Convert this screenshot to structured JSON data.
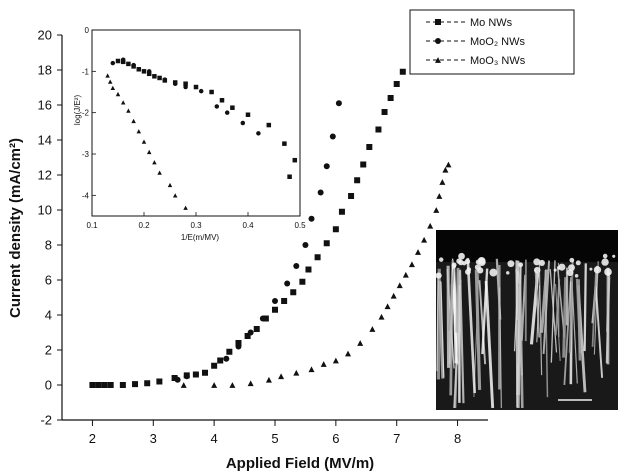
{
  "chart_data": [
    {
      "type": "scatter",
      "xlabel": "Applied Field (MV/m)",
      "ylabel": "Current density (mA/cm²)",
      "xlim": [
        1.5,
        8.5
      ],
      "ylim": [
        -2,
        20
      ],
      "xticks": [
        "2",
        "3",
        "4",
        "5",
        "6",
        "7",
        "8"
      ],
      "yticks": [
        "-2",
        "0",
        "2",
        "4",
        "6",
        "8",
        "10",
        "12",
        "14",
        "16",
        "18",
        "20"
      ],
      "legend_position": "top-right",
      "series": [
        {
          "name": "Mo NWs",
          "marker": "square",
          "points": [
            [
              2.0,
              0.0
            ],
            [
              2.1,
              0.0
            ],
            [
              2.2,
              0.0
            ],
            [
              2.3,
              0.0
            ],
            [
              2.5,
              0.0
            ],
            [
              2.7,
              0.05
            ],
            [
              2.9,
              0.1
            ],
            [
              3.1,
              0.2
            ],
            [
              3.35,
              0.4
            ],
            [
              3.55,
              0.55
            ],
            [
              3.7,
              0.6
            ],
            [
              3.85,
              0.7
            ],
            [
              4.0,
              1.1
            ],
            [
              4.1,
              1.4
            ],
            [
              4.25,
              1.9
            ],
            [
              4.4,
              2.4
            ],
            [
              4.55,
              2.8
            ],
            [
              4.7,
              3.2
            ],
            [
              4.85,
              3.8
            ],
            [
              5.0,
              4.3
            ],
            [
              5.15,
              4.8
            ],
            [
              5.3,
              5.3
            ],
            [
              5.45,
              5.9
            ],
            [
              5.55,
              6.6
            ],
            [
              5.7,
              7.3
            ],
            [
              5.85,
              8.1
            ],
            [
              6.0,
              8.9
            ],
            [
              6.1,
              9.9
            ],
            [
              6.25,
              10.8
            ],
            [
              6.35,
              11.7
            ],
            [
              6.45,
              12.6
            ],
            [
              6.55,
              13.6
            ],
            [
              6.7,
              14.6
            ],
            [
              6.8,
              15.6
            ],
            [
              6.9,
              16.4
            ],
            [
              7.0,
              17.2
            ],
            [
              7.1,
              17.9
            ]
          ]
        },
        {
          "name": "MoO₂ NWs",
          "marker": "circle",
          "points": [
            [
              3.4,
              0.3
            ],
            [
              3.55,
              0.5
            ],
            [
              3.7,
              0.6
            ],
            [
              4.2,
              1.5
            ],
            [
              4.4,
              2.2
            ],
            [
              4.6,
              3.0
            ],
            [
              4.8,
              3.8
            ],
            [
              5.0,
              4.8
            ],
            [
              5.2,
              5.8
            ],
            [
              5.35,
              6.8
            ],
            [
              5.5,
              8.0
            ],
            [
              5.6,
              9.5
            ],
            [
              5.75,
              11.0
            ],
            [
              5.85,
              12.5
            ],
            [
              5.95,
              14.2
            ],
            [
              6.05,
              16.1
            ]
          ]
        },
        {
          "name": "MoO₃ NWs",
          "marker": "triangle",
          "points": [
            [
              3.5,
              0.0
            ],
            [
              4.0,
              0.0
            ],
            [
              4.3,
              0.0
            ],
            [
              4.6,
              0.1
            ],
            [
              4.9,
              0.3
            ],
            [
              5.1,
              0.5
            ],
            [
              5.35,
              0.7
            ],
            [
              5.6,
              0.9
            ],
            [
              5.8,
              1.2
            ],
            [
              6.0,
              1.4
            ],
            [
              6.2,
              1.8
            ],
            [
              6.4,
              2.4
            ],
            [
              6.6,
              3.2
            ],
            [
              6.75,
              3.9
            ],
            [
              6.85,
              4.5
            ],
            [
              6.95,
              5.1
            ],
            [
              7.05,
              5.7
            ],
            [
              7.15,
              6.3
            ],
            [
              7.25,
              6.9
            ],
            [
              7.35,
              7.6
            ],
            [
              7.45,
              8.3
            ],
            [
              7.55,
              9.1
            ],
            [
              7.65,
              10.0
            ],
            [
              7.7,
              10.8
            ],
            [
              7.75,
              11.6
            ],
            [
              7.8,
              12.3
            ],
            [
              7.85,
              12.6
            ]
          ]
        }
      ]
    },
    {
      "type": "scatter",
      "xlabel": "1/E(m/MV)",
      "ylabel": "log(J/E²)",
      "xlim": [
        0.1,
        0.5
      ],
      "ylim": [
        -4.5,
        0
      ],
      "xticks": [
        "0.1",
        "0.2",
        "0.3",
        "0.4",
        "0.5"
      ],
      "yticks": [
        "-4",
        "-3",
        "-2",
        "-1",
        "0"
      ],
      "series": [
        {
          "marker": "square",
          "points": [
            [
              0.15,
              -0.75
            ],
            [
              0.16,
              -0.77
            ],
            [
              0.17,
              -0.82
            ],
            [
              0.18,
              -0.88
            ],
            [
              0.19,
              -0.95
            ],
            [
              0.2,
              -1.0
            ],
            [
              0.21,
              -1.06
            ],
            [
              0.22,
              -1.12
            ],
            [
              0.23,
              -1.16
            ],
            [
              0.24,
              -1.22
            ],
            [
              0.26,
              -1.27
            ],
            [
              0.28,
              -1.3
            ],
            [
              0.3,
              -1.38
            ],
            [
              0.33,
              -1.5
            ],
            [
              0.35,
              -1.7
            ],
            [
              0.37,
              -1.88
            ],
            [
              0.4,
              -2.05
            ],
            [
              0.44,
              -2.3
            ],
            [
              0.47,
              -2.75
            ],
            [
              0.49,
              -3.15
            ],
            [
              0.48,
              -3.55
            ]
          ]
        },
        {
          "marker": "circle",
          "points": [
            [
              0.14,
              -0.8
            ],
            [
              0.16,
              -0.72
            ],
            [
              0.18,
              -0.85
            ],
            [
              0.21,
              -1.0
            ],
            [
              0.24,
              -1.2
            ],
            [
              0.26,
              -1.3
            ],
            [
              0.28,
              -1.38
            ],
            [
              0.31,
              -1.48
            ],
            [
              0.34,
              -1.85
            ],
            [
              0.36,
              -2.0
            ],
            [
              0.39,
              -2.25
            ],
            [
              0.42,
              -2.5
            ]
          ]
        },
        {
          "marker": "triangle",
          "points": [
            [
              0.13,
              -1.1
            ],
            [
              0.135,
              -1.25
            ],
            [
              0.14,
              -1.4
            ],
            [
              0.15,
              -1.55
            ],
            [
              0.16,
              -1.75
            ],
            [
              0.17,
              -1.95
            ],
            [
              0.18,
              -2.2
            ],
            [
              0.19,
              -2.45
            ],
            [
              0.2,
              -2.7
            ],
            [
              0.21,
              -2.95
            ],
            [
              0.22,
              -3.2
            ],
            [
              0.23,
              -3.45
            ],
            [
              0.25,
              -3.75
            ],
            [
              0.26,
              -4.0
            ],
            [
              0.28,
              -4.3
            ]
          ]
        }
      ]
    }
  ]
}
